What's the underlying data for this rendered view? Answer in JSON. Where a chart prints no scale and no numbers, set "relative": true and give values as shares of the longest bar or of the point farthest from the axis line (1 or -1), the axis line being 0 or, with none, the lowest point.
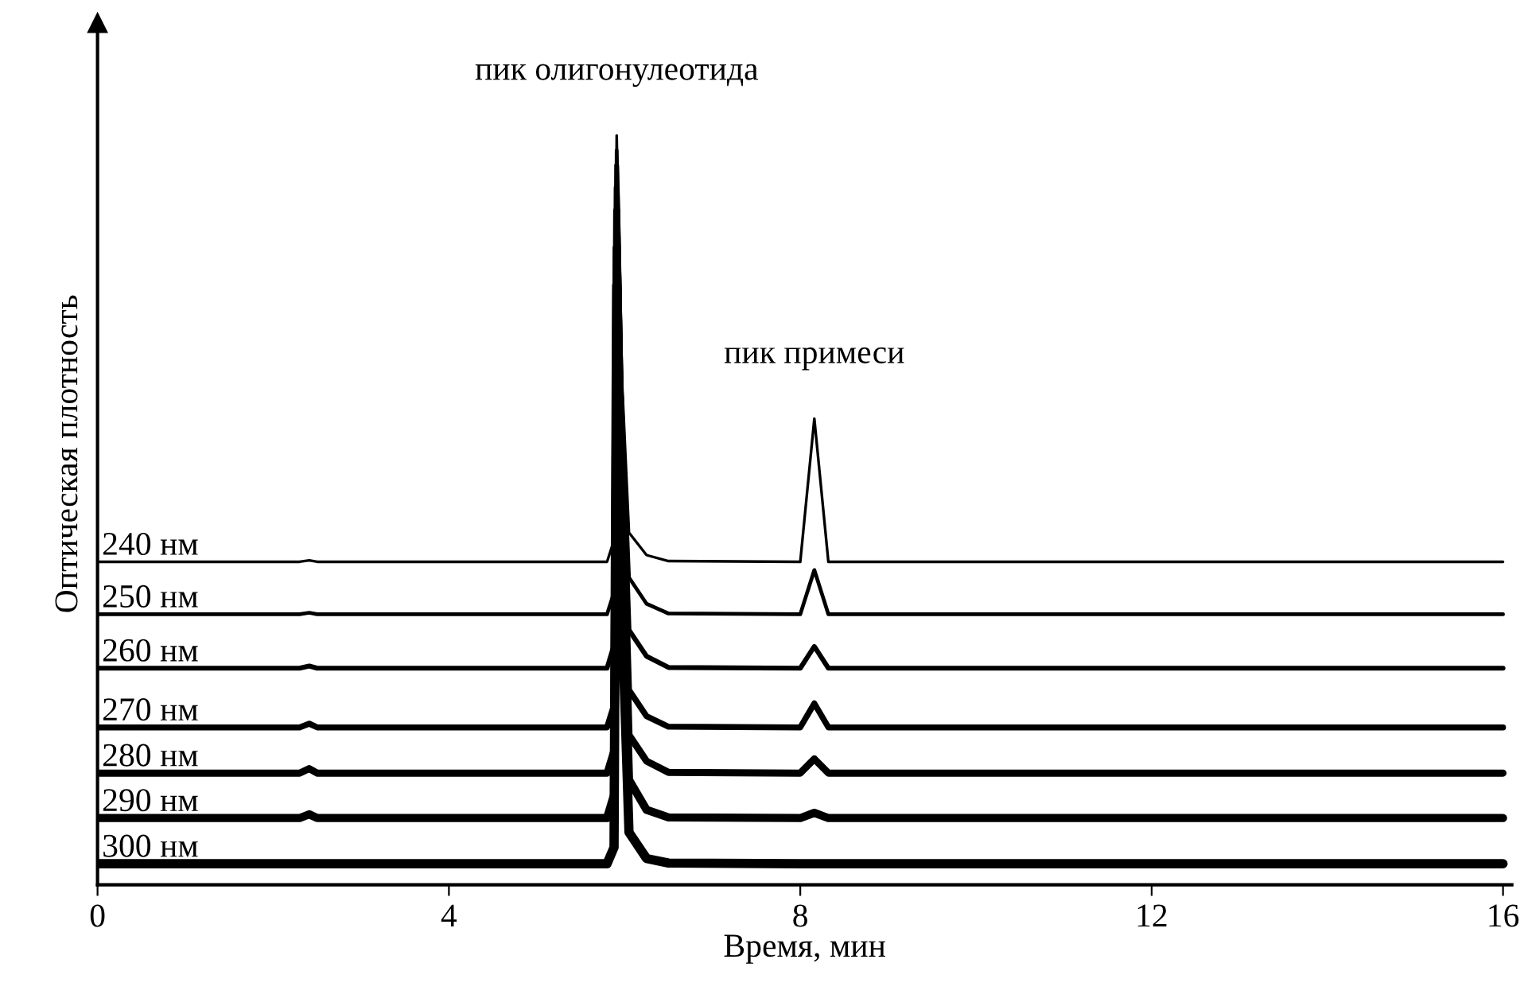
{
  "chart_data": {
    "type": "line",
    "relative": true,
    "xlabel": "Время, мин",
    "ylabel": "Оптическая плотность",
    "xlim": [
      0,
      16.1
    ],
    "xticks": [
      0,
      4,
      8,
      12,
      16
    ],
    "grid": false,
    "legend": false,
    "marker": "none",
    "line_style": "solid",
    "annotations": [
      {
        "text": "пик олигонулеотида",
        "x": 5.91,
        "y": 1.0
      },
      {
        "text": "пик примеси",
        "x": 8.16,
        "y": 0.622
      }
    ],
    "series": [
      {
        "name": "240 нм",
        "color": "#000000",
        "x": [
          0,
          2.3,
          2.41,
          2.5,
          5.8,
          5.88,
          5.91,
          5.96,
          6.05,
          6.25,
          6.5,
          8.0,
          8.16,
          8.32,
          16
        ],
        "values": [
          0.431,
          0.431,
          0.433,
          0.431,
          0.431,
          0.46,
          1.0,
          0.7,
          0.47,
          0.44,
          0.432,
          0.431,
          0.622,
          0.431,
          0.431
        ]
      },
      {
        "name": "250 нм",
        "color": "#000000",
        "x": [
          0,
          2.3,
          2.41,
          2.5,
          5.8,
          5.88,
          5.91,
          5.96,
          6.05,
          6.25,
          6.5,
          8.0,
          8.16,
          8.32,
          16
        ],
        "values": [
          0.361,
          0.361,
          0.363,
          0.361,
          0.361,
          0.39,
          0.98,
          0.68,
          0.41,
          0.375,
          0.362,
          0.361,
          0.42,
          0.361,
          0.361
        ]
      },
      {
        "name": "260 нм",
        "color": "#000000",
        "x": [
          0,
          2.3,
          2.41,
          2.5,
          5.8,
          5.88,
          5.91,
          5.96,
          6.05,
          6.25,
          6.5,
          8.0,
          8.16,
          8.32,
          16
        ],
        "values": [
          0.289,
          0.289,
          0.292,
          0.289,
          0.289,
          0.32,
          0.96,
          0.66,
          0.34,
          0.305,
          0.29,
          0.289,
          0.318,
          0.289,
          0.289
        ]
      },
      {
        "name": "270 нм",
        "color": "#000000",
        "x": [
          0,
          2.3,
          2.41,
          2.5,
          5.8,
          5.88,
          5.91,
          5.96,
          6.05,
          6.25,
          6.5,
          8.0,
          8.16,
          8.32,
          16
        ],
        "values": [
          0.21,
          0.21,
          0.215,
          0.21,
          0.21,
          0.24,
          0.93,
          0.62,
          0.26,
          0.225,
          0.211,
          0.21,
          0.242,
          0.21,
          0.21
        ]
      },
      {
        "name": "280 нм",
        "color": "#000000",
        "x": [
          0,
          2.3,
          2.41,
          2.5,
          5.8,
          5.88,
          5.91,
          5.96,
          6.05,
          6.25,
          6.5,
          8.0,
          8.16,
          8.32,
          16
        ],
        "values": [
          0.149,
          0.149,
          0.155,
          0.149,
          0.149,
          0.18,
          0.9,
          0.58,
          0.2,
          0.165,
          0.15,
          0.149,
          0.168,
          0.149,
          0.149
        ]
      },
      {
        "name": "290 нм",
        "color": "#000000",
        "x": [
          0,
          2.3,
          2.41,
          2.5,
          5.8,
          5.88,
          5.91,
          5.96,
          6.05,
          6.25,
          6.5,
          8.0,
          8.16,
          8.32,
          16
        ],
        "values": [
          0.089,
          0.089,
          0.094,
          0.089,
          0.089,
          0.12,
          0.85,
          0.52,
          0.14,
          0.1,
          0.09,
          0.089,
          0.096,
          0.089,
          0.089
        ]
      },
      {
        "name": "300 нм",
        "color": "#000000",
        "x": [
          0,
          2.3,
          2.41,
          2.5,
          5.8,
          5.88,
          5.91,
          5.96,
          6.05,
          6.25,
          6.5,
          8.0,
          8.16,
          8.32,
          16
        ],
        "values": [
          0.028,
          0.028,
          0.028,
          0.028,
          0.028,
          0.05,
          0.8,
          0.4,
          0.07,
          0.035,
          0.029,
          0.028,
          0.028,
          0.028,
          0.028
        ]
      }
    ]
  }
}
